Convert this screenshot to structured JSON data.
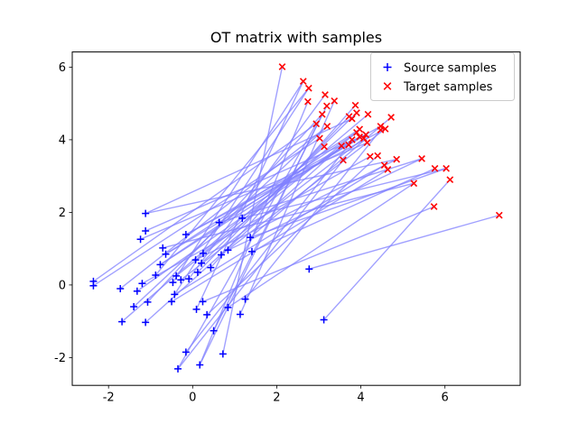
{
  "chart_data": {
    "type": "scatter",
    "title": "OT matrix with samples",
    "legend": [
      {
        "label": "Source samples",
        "marker": "plus",
        "color": "#0000ff"
      },
      {
        "label": "Target samples",
        "marker": "x",
        "color": "#ff0000"
      }
    ],
    "legend_position": "upper right",
    "grid": false,
    "x_ticks": [
      -2,
      0,
      2,
      4,
      6
    ],
    "y_ticks": [
      -2,
      0,
      2,
      4,
      6
    ],
    "xlim": [
      -2.863,
      7.789
    ],
    "ylim": [
      -2.765,
      6.418
    ],
    "line_color": "#8080ff",
    "source_color": "#0000ff",
    "target_color": "#ff0000",
    "series": [
      {
        "name": "Source samples",
        "points": [
          [
            -2.36,
            0.1
          ],
          [
            -2.36,
            -0.02
          ],
          [
            -1.72,
            -0.1
          ],
          [
            -1.32,
            -0.17
          ],
          [
            -1.2,
            0.04
          ],
          [
            -0.88,
            0.27
          ],
          [
            -0.77,
            0.56
          ],
          [
            -0.64,
            0.85
          ],
          [
            -1.4,
            -0.6
          ],
          [
            -1.07,
            -0.47
          ],
          [
            -1.68,
            -1.01
          ],
          [
            -1.12,
            -1.03
          ],
          [
            -0.47,
            0.07
          ],
          [
            -0.39,
            0.25
          ],
          [
            -0.28,
            0.14
          ],
          [
            -0.5,
            -0.46
          ],
          [
            -0.43,
            -0.26
          ],
          [
            -0.09,
            0.17
          ],
          [
            0.21,
            0.6
          ],
          [
            0.43,
            0.48
          ],
          [
            0.12,
            0.35
          ],
          [
            0.09,
            -0.67
          ],
          [
            0.34,
            -0.82
          ],
          [
            0.5,
            -1.26
          ],
          [
            0.72,
            -1.9
          ],
          [
            -0.16,
            -1.85
          ],
          [
            -0.35,
            -2.31
          ],
          [
            0.17,
            -2.2
          ],
          [
            -1.12,
            1.97
          ],
          [
            -1.12,
            1.49
          ],
          [
            -1.24,
            1.26
          ],
          [
            -0.71,
            1.02
          ],
          [
            -0.16,
            1.39
          ],
          [
            0.63,
            1.72
          ],
          [
            0.25,
            0.87
          ],
          [
            0.84,
            0.96
          ],
          [
            0.68,
            0.83
          ],
          [
            0.07,
            0.69
          ],
          [
            1.18,
            1.84
          ],
          [
            1.37,
            1.31
          ],
          [
            1.41,
            0.92
          ],
          [
            2.77,
            0.44
          ],
          [
            1.25,
            -0.39
          ],
          [
            1.13,
            -0.81
          ],
          [
            3.12,
            -0.96
          ],
          [
            0.24,
            -0.46
          ],
          [
            0.84,
            -0.62
          ]
        ]
      },
      {
        "name": "Target samples",
        "points": [
          [
            2.13,
            6.01
          ],
          [
            2.63,
            5.61
          ],
          [
            2.76,
            5.42
          ],
          [
            2.74,
            5.05
          ],
          [
            3.15,
            5.24
          ],
          [
            3.19,
            4.93
          ],
          [
            3.37,
            5.07
          ],
          [
            3.08,
            4.7
          ],
          [
            3.2,
            4.37
          ],
          [
            2.94,
            4.44
          ],
          [
            3.87,
            4.95
          ],
          [
            3.9,
            4.74
          ],
          [
            4.17,
            4.7
          ],
          [
            3.72,
            4.64
          ],
          [
            3.79,
            4.58
          ],
          [
            4.72,
            4.62
          ],
          [
            4.47,
            4.37
          ],
          [
            3.97,
            4.29
          ],
          [
            3.02,
            4.04
          ],
          [
            3.13,
            3.81
          ],
          [
            3.54,
            3.83
          ],
          [
            3.71,
            3.86
          ],
          [
            3.79,
            4.0
          ],
          [
            3.9,
            4.2
          ],
          [
            3.97,
            4.08
          ],
          [
            4.07,
            4.04
          ],
          [
            4.12,
            4.14
          ],
          [
            4.15,
            3.92
          ],
          [
            4.47,
            4.27
          ],
          [
            4.58,
            4.3
          ],
          [
            3.58,
            3.44
          ],
          [
            4.22,
            3.54
          ],
          [
            4.4,
            3.56
          ],
          [
            4.56,
            3.3
          ],
          [
            4.64,
            3.18
          ],
          [
            4.85,
            3.46
          ],
          [
            5.26,
            2.8
          ],
          [
            5.45,
            3.48
          ],
          [
            5.76,
            3.21
          ],
          [
            6.03,
            3.21
          ],
          [
            6.12,
            2.9
          ],
          [
            5.74,
            2.16
          ],
          [
            7.29,
            1.92
          ]
        ]
      }
    ],
    "connection_note": "semi-transparent blue lines link each source sample to its transported target sample"
  }
}
